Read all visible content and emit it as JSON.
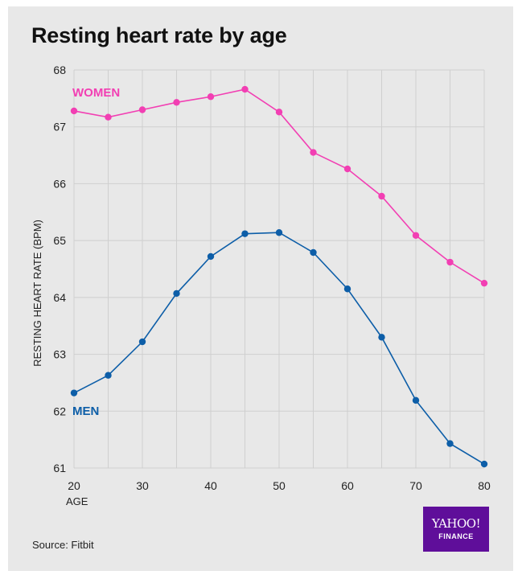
{
  "chart_data": {
    "type": "line",
    "title": "Resting heart rate by age",
    "xlabel": "AGE",
    "ylabel": "RESTING HEART RATE (BPM)",
    "x": [
      20,
      25,
      30,
      35,
      40,
      45,
      50,
      55,
      60,
      65,
      70,
      75,
      80
    ],
    "x_ticks": [
      20,
      30,
      40,
      50,
      60,
      70,
      80
    ],
    "y_ticks": [
      61,
      62,
      63,
      64,
      65,
      66,
      67,
      68
    ],
    "xlim": [
      20,
      80
    ],
    "ylim": [
      61,
      68
    ],
    "grid": true,
    "series": [
      {
        "name": "WOMEN",
        "color": "#f23fb3",
        "values": [
          67.28,
          67.17,
          67.3,
          67.43,
          67.53,
          67.66,
          67.26,
          66.55,
          66.26,
          65.78,
          65.09,
          64.62,
          64.25
        ]
      },
      {
        "name": "MEN",
        "color": "#0d5ea8",
        "values": [
          62.32,
          62.63,
          63.22,
          64.07,
          64.72,
          65.12,
          65.14,
          64.79,
          64.15,
          63.3,
          62.19,
          61.43,
          61.07
        ]
      }
    ]
  },
  "source": "Source: Fitbit",
  "logo": {
    "line1": "YAHOO!",
    "line2": "FINANCE",
    "color": "#5f0e9a"
  }
}
